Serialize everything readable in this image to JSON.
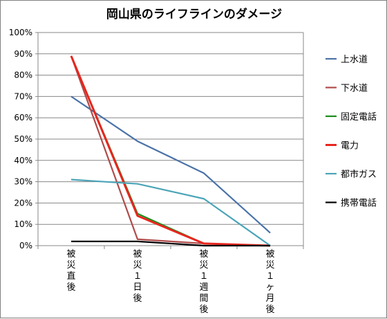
{
  "chart_data": {
    "type": "line",
    "title": "岡山県のライフラインのダメージ",
    "xlabel": "",
    "ylabel": "",
    "categories": [
      "被災直後",
      "被災１日後",
      "被災１週間後",
      "被災１ヶ月後"
    ],
    "ylim": [
      0,
      100
    ],
    "yticks": [
      "0%",
      "10%",
      "20%",
      "30%",
      "40%",
      "50%",
      "60%",
      "70%",
      "80%",
      "90%",
      "100%"
    ],
    "grid": true,
    "legend_position": "right",
    "series": [
      {
        "name": "上水道",
        "color": "#4a72a8",
        "values": [
          70,
          49,
          34,
          6
        ]
      },
      {
        "name": "下水道",
        "color": "#b04a4a",
        "values": [
          89,
          3,
          1,
          0
        ]
      },
      {
        "name": "固定電話",
        "color": "#1b8c1b",
        "values": [
          89,
          15,
          1,
          0
        ]
      },
      {
        "name": "電力",
        "color": "#e8261e",
        "values": [
          89,
          14,
          1,
          0
        ]
      },
      {
        "name": "都市ガス",
        "color": "#4ba4b8",
        "values": [
          31,
          29,
          22,
          0
        ]
      },
      {
        "name": "携帯電話",
        "color": "#000000",
        "values": [
          2,
          2,
          0,
          0
        ]
      }
    ]
  }
}
